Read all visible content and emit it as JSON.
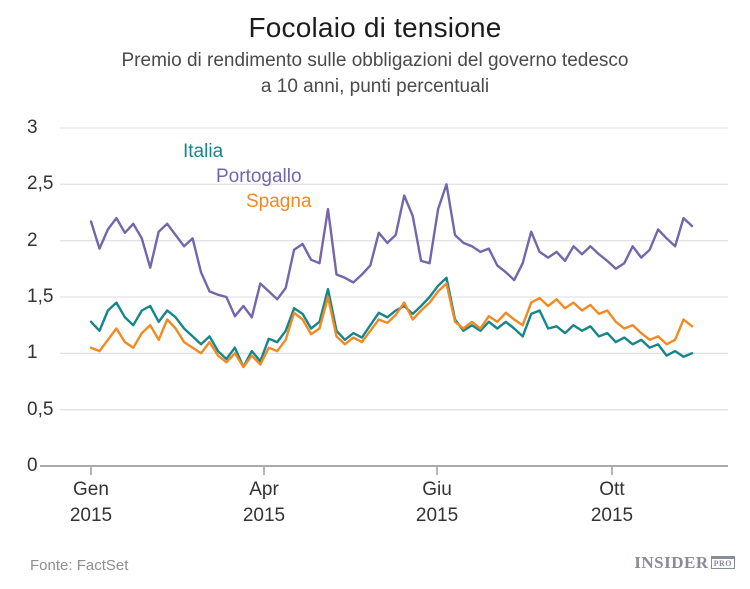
{
  "header": {
    "title": "Focolaio di tensione",
    "subtitle_line1": "Premio di rendimento sulle obbligazioni del governo tedesco",
    "subtitle_line2": "a 10 anni, punti percentuali"
  },
  "footer": {
    "source": "Fonte: FactSet",
    "logo_text": "INSIDER",
    "logo_badge": "PRO"
  },
  "colors": {
    "italia": "#15868a",
    "portogallo": "#7566ab",
    "spagna": "#f18a23",
    "grid": "#e3e3e3",
    "axis": "#ababab",
    "tick_mark": "#9b9b9b"
  },
  "chart_data": {
    "type": "line",
    "title": "Focolaio di tensione",
    "subtitle": "Premio di rendimento sulle obbligazioni del governo tedesco a 10 anni, punti percentuali",
    "ylabel": "punti percentuali",
    "ylim": [
      0,
      3
    ],
    "grid": "horizontal",
    "legend_position": "staggered top-left inside plot",
    "yticks": [
      {
        "value": 3,
        "label": "3"
      },
      {
        "value": 2.5,
        "label": "2,5"
      },
      {
        "value": 2,
        "label": "2"
      },
      {
        "value": 1.5,
        "label": "1,5"
      },
      {
        "value": 1,
        "label": "1"
      },
      {
        "value": 0.5,
        "label": "0,5"
      },
      {
        "value": 0,
        "label": "0"
      }
    ],
    "xticks": [
      {
        "month": "Gen",
        "year": "2015",
        "pos": 0.0464
      },
      {
        "month": "Apr",
        "year": "2015",
        "pos": 0.3054
      },
      {
        "month": "Giu",
        "year": "2015",
        "pos": 0.5644
      },
      {
        "month": "Ott",
        "year": "2015",
        "pos": 0.8263
      }
    ],
    "x_range_frac": {
      "start": 0.0464,
      "end": 0.9461
    },
    "x_unit": "giorni di negoziazione, Gen 2015 - Dic 2015",
    "series": [
      {
        "name": "Italia",
        "color": "#15868a",
        "values": [
          1.28,
          1.2,
          1.38,
          1.45,
          1.32,
          1.25,
          1.38,
          1.42,
          1.28,
          1.38,
          1.32,
          1.22,
          1.15,
          1.08,
          1.15,
          1.02,
          0.95,
          1.05,
          0.88,
          1.02,
          0.93,
          1.13,
          1.1,
          1.2,
          1.4,
          1.35,
          1.22,
          1.28,
          1.57,
          1.2,
          1.12,
          1.18,
          1.14,
          1.25,
          1.36,
          1.32,
          1.38,
          1.42,
          1.35,
          1.42,
          1.5,
          1.6,
          1.67,
          1.3,
          1.2,
          1.25,
          1.2,
          1.28,
          1.22,
          1.28,
          1.22,
          1.15,
          1.35,
          1.38,
          1.22,
          1.24,
          1.18,
          1.25,
          1.2,
          1.24,
          1.15,
          1.18,
          1.1,
          1.14,
          1.08,
          1.12,
          1.05,
          1.08,
          0.98,
          1.02,
          0.97,
          1.0
        ]
      },
      {
        "name": "Portogallo",
        "color": "#7566ab",
        "values": [
          2.17,
          1.93,
          2.1,
          2.2,
          2.07,
          2.15,
          2.02,
          1.76,
          2.08,
          2.15,
          2.05,
          1.95,
          2.02,
          1.72,
          1.55,
          1.52,
          1.5,
          1.33,
          1.42,
          1.32,
          1.62,
          1.55,
          1.48,
          1.58,
          1.92,
          1.97,
          1.83,
          1.8,
          2.28,
          1.7,
          1.67,
          1.63,
          1.7,
          1.78,
          2.07,
          1.98,
          2.05,
          2.4,
          2.22,
          1.82,
          1.8,
          2.28,
          2.5,
          2.05,
          1.98,
          1.95,
          1.9,
          1.93,
          1.78,
          1.72,
          1.65,
          1.8,
          2.08,
          1.9,
          1.85,
          1.9,
          1.82,
          1.95,
          1.88,
          1.95,
          1.88,
          1.82,
          1.75,
          1.8,
          1.95,
          1.85,
          1.92,
          2.1,
          2.02,
          1.95,
          2.2,
          2.13
        ]
      },
      {
        "name": "Spagna",
        "color": "#f18a23",
        "values": [
          1.05,
          1.02,
          1.12,
          1.22,
          1.1,
          1.05,
          1.18,
          1.25,
          1.12,
          1.3,
          1.22,
          1.1,
          1.05,
          1.0,
          1.1,
          0.98,
          0.92,
          1.0,
          0.88,
          0.98,
          0.9,
          1.05,
          1.02,
          1.12,
          1.36,
          1.3,
          1.17,
          1.22,
          1.5,
          1.15,
          1.08,
          1.14,
          1.1,
          1.2,
          1.3,
          1.27,
          1.34,
          1.45,
          1.3,
          1.38,
          1.45,
          1.55,
          1.62,
          1.28,
          1.22,
          1.28,
          1.22,
          1.33,
          1.28,
          1.36,
          1.3,
          1.25,
          1.45,
          1.49,
          1.42,
          1.48,
          1.4,
          1.45,
          1.38,
          1.43,
          1.35,
          1.38,
          1.28,
          1.22,
          1.25,
          1.18,
          1.12,
          1.15,
          1.08,
          1.12,
          1.3,
          1.24
        ]
      }
    ]
  },
  "legend": {
    "items": [
      {
        "label": "Italia",
        "color": "#15868a"
      },
      {
        "label": "Portogallo",
        "color": "#7566ab"
      },
      {
        "label": "Spagna",
        "color": "#f18a23"
      }
    ]
  }
}
